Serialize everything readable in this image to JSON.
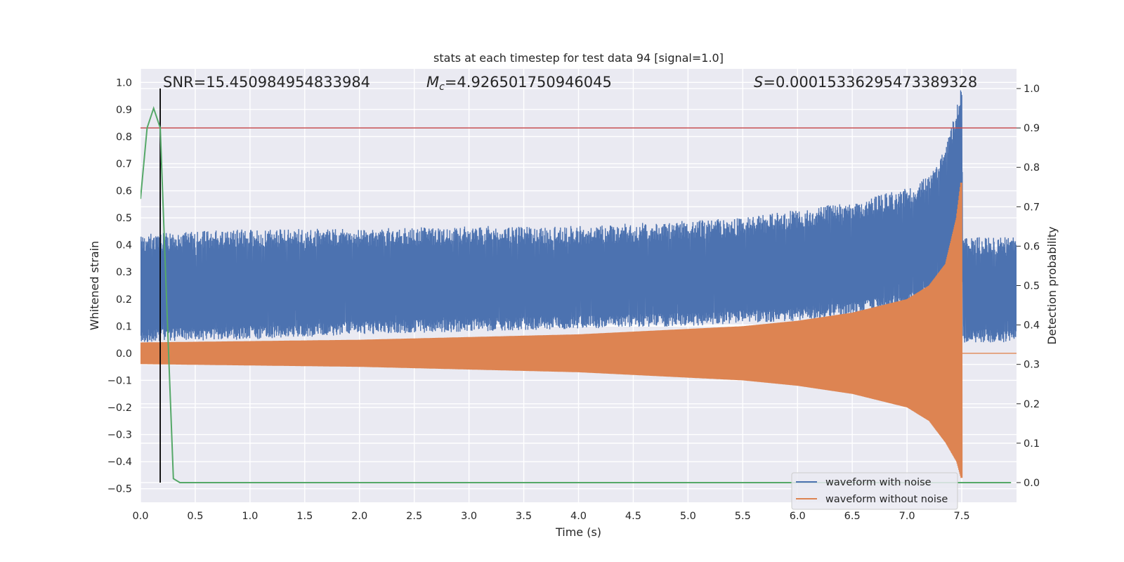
{
  "chart_data": {
    "type": "line",
    "title": "stats at each timestep for test data 94 [signal=1.0]",
    "xlabel": "Time (s)",
    "ylabel_left": "Whitened strain",
    "ylabel_right": "Detection probability",
    "xlim": [
      0.0,
      8.0
    ],
    "ylim_left": [
      -0.55,
      1.05
    ],
    "ylim_right": [
      -0.05,
      1.05
    ],
    "x_ticks": [
      "0.0",
      "0.5",
      "1.0",
      "1.5",
      "2.0",
      "2.5",
      "3.0",
      "3.5",
      "4.0",
      "4.5",
      "5.0",
      "5.5",
      "6.0",
      "6.5",
      "7.0",
      "7.5"
    ],
    "y_ticks_left": [
      "1.0",
      "0.9",
      "0.8",
      "0.7",
      "0.6",
      "0.5",
      "0.4",
      "0.3",
      "0.2",
      "0.1",
      "0.0",
      "−0.1",
      "−0.2",
      "−0.3",
      "−0.4",
      "−0.5"
    ],
    "y_ticks_right": [
      "1.0",
      "0.9",
      "0.8",
      "0.7",
      "0.6",
      "0.5",
      "0.4",
      "0.3",
      "0.2",
      "0.1",
      "0.0"
    ],
    "grid": true,
    "annotations": {
      "snr": "SNR=15.450984954833984",
      "mc_symbol": "M",
      "mc_sub": "c",
      "mc_value": "=4.926501750946045",
      "s_symbol": "S",
      "s_value": "=0.00015336295473389328"
    },
    "threshold_probability": 0.9,
    "vertical_marker_time": 0.18,
    "merger_time": 7.5,
    "series": [
      {
        "name": "waveform with noise",
        "color": "#4c72b0",
        "axis": "left",
        "envelope": {
          "x": [
            0.0,
            1.0,
            2.0,
            3.0,
            4.0,
            5.0,
            5.5,
            6.0,
            6.5,
            7.0,
            7.2,
            7.35,
            7.45,
            7.5,
            7.51,
            8.0
          ],
          "upper": [
            0.44,
            0.46,
            0.46,
            0.47,
            0.47,
            0.49,
            0.5,
            0.53,
            0.56,
            0.61,
            0.66,
            0.76,
            0.9,
            1.0,
            0.43,
            0.43
          ],
          "lower": [
            0.04,
            0.05,
            0.07,
            0.08,
            0.09,
            0.1,
            0.11,
            0.12,
            0.14,
            0.17,
            0.2,
            0.25,
            0.4,
            0.45,
            0.04,
            0.04
          ]
        }
      },
      {
        "name": "waveform without noise",
        "color": "#dd8452",
        "axis": "left",
        "envelope": {
          "x": [
            0.0,
            1.0,
            2.0,
            3.0,
            4.0,
            5.0,
            5.5,
            6.0,
            6.5,
            7.0,
            7.2,
            7.35,
            7.45,
            7.49,
            7.5
          ],
          "upper": [
            0.04,
            0.045,
            0.05,
            0.06,
            0.07,
            0.09,
            0.1,
            0.12,
            0.15,
            0.2,
            0.25,
            0.33,
            0.5,
            0.63,
            0.63
          ],
          "lower": [
            -0.04,
            -0.045,
            -0.05,
            -0.06,
            -0.07,
            -0.09,
            -0.1,
            -0.12,
            -0.15,
            -0.2,
            -0.25,
            -0.33,
            -0.4,
            -0.46,
            -0.46
          ]
        },
        "after_merger_value": 0.0
      },
      {
        "name": "detection probability",
        "color": "#55a868",
        "axis": "right",
        "x": [
          0.0,
          0.06,
          0.12,
          0.18,
          0.24,
          0.3,
          0.36,
          0.5,
          1.0,
          2.0,
          3.0,
          4.0,
          5.0,
          6.0,
          7.0,
          7.5,
          7.95
        ],
        "y": [
          0.72,
          0.9,
          0.95,
          0.9,
          0.45,
          0.01,
          0.0,
          0.0,
          0.0,
          0.0,
          0.0,
          0.0,
          0.0,
          0.0,
          0.0,
          0.0,
          0.0
        ]
      }
    ],
    "legend": {
      "position": "lower-right",
      "entries": [
        {
          "label": "waveform with noise",
          "color": "#4c72b0"
        },
        {
          "label": "waveform without noise",
          "color": "#dd8452"
        }
      ]
    }
  }
}
